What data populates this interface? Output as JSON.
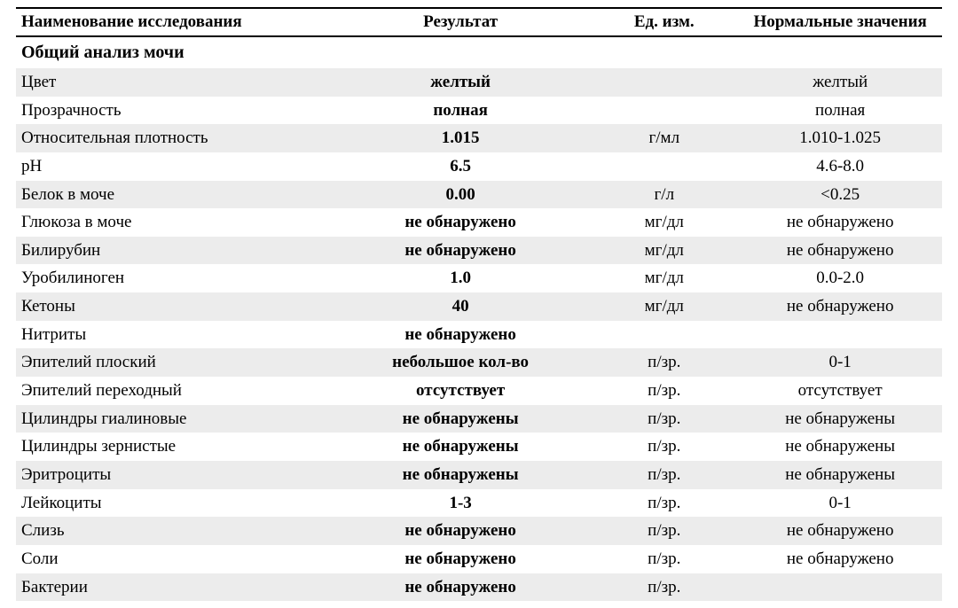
{
  "table": {
    "type": "table",
    "background_color": "#ffffff",
    "stripe_color": "#ececec",
    "border_color": "#000000",
    "font_family": "Times New Roman",
    "header_fontsize": 19,
    "cell_fontsize": 19,
    "section_fontsize": 20,
    "columns": [
      {
        "key": "name",
        "label": "Наименование исследования",
        "width_pct": 34,
        "align": "left"
      },
      {
        "key": "result",
        "label": "Результат",
        "width_pct": 28,
        "align": "center",
        "bold": true
      },
      {
        "key": "unit",
        "label": "Ед. изм.",
        "width_pct": 16,
        "align": "center"
      },
      {
        "key": "ref",
        "label": "Нормальные значения",
        "width_pct": 22,
        "align": "center"
      }
    ],
    "section_title": "Общий анализ мочи",
    "rows": [
      {
        "name": "Цвет",
        "result": "желтый",
        "unit": "",
        "ref": "желтый",
        "striped": true
      },
      {
        "name": "Прозрачность",
        "result": "полная",
        "unit": "",
        "ref": "полная",
        "striped": false
      },
      {
        "name": "Относительная плотность",
        "result": "1.015",
        "unit": "г/мл",
        "ref": "1.010-1.025",
        "striped": true
      },
      {
        "name": "pH",
        "result": "6.5",
        "unit": "",
        "ref": "4.6-8.0",
        "striped": false
      },
      {
        "name": "Белок в моче",
        "result": "0.00",
        "unit": "г/л",
        "ref": "<0.25",
        "striped": true
      },
      {
        "name": "Глюкоза в моче",
        "result": "не обнаружено",
        "unit": "мг/дл",
        "ref": "не обнаружено",
        "striped": false
      },
      {
        "name": "Билирубин",
        "result": "не обнаружено",
        "unit": "мг/дл",
        "ref": "не обнаружено",
        "striped": true
      },
      {
        "name": "Уробилиноген",
        "result": "1.0",
        "unit": "мг/дл",
        "ref": "0.0-2.0",
        "striped": false
      },
      {
        "name": "Кетоны",
        "result": "40",
        "unit": "мг/дл",
        "ref": "не обнаружено",
        "striped": true
      },
      {
        "name": "Нитриты",
        "result": "не обнаружено",
        "unit": "",
        "ref": "",
        "striped": false
      },
      {
        "name": "Эпителий плоский",
        "result": "небольшое кол-во",
        "unit": "п/зр.",
        "ref": "0-1",
        "striped": true
      },
      {
        "name": "Эпителий переходный",
        "result": "отсутствует",
        "unit": "п/зр.",
        "ref": "отсутствует",
        "striped": false
      },
      {
        "name": "Цилиндры гиалиновые",
        "result": "не обнаружены",
        "unit": "п/зр.",
        "ref": "не обнаружены",
        "striped": true
      },
      {
        "name": "Цилиндры зернистые",
        "result": "не обнаружены",
        "unit": "п/зр.",
        "ref": "не обнаружены",
        "striped": false
      },
      {
        "name": "Эритроциты",
        "result": "не обнаружены",
        "unit": "п/зр.",
        "ref": "не обнаружены",
        "striped": true
      },
      {
        "name": "Лейкоциты",
        "result": "1-3",
        "unit": "п/зр.",
        "ref": "0-1",
        "striped": false
      },
      {
        "name": "Слизь",
        "result": "не обнаружено",
        "unit": "п/зр.",
        "ref": "не обнаружено",
        "striped": true
      },
      {
        "name": "Соли",
        "result": "не обнаружено",
        "unit": "п/зр.",
        "ref": "не обнаружено",
        "striped": false
      },
      {
        "name": "Бактерии",
        "result": "не обнаружено",
        "unit": "п/зр.",
        "ref": "",
        "striped": true
      }
    ]
  }
}
